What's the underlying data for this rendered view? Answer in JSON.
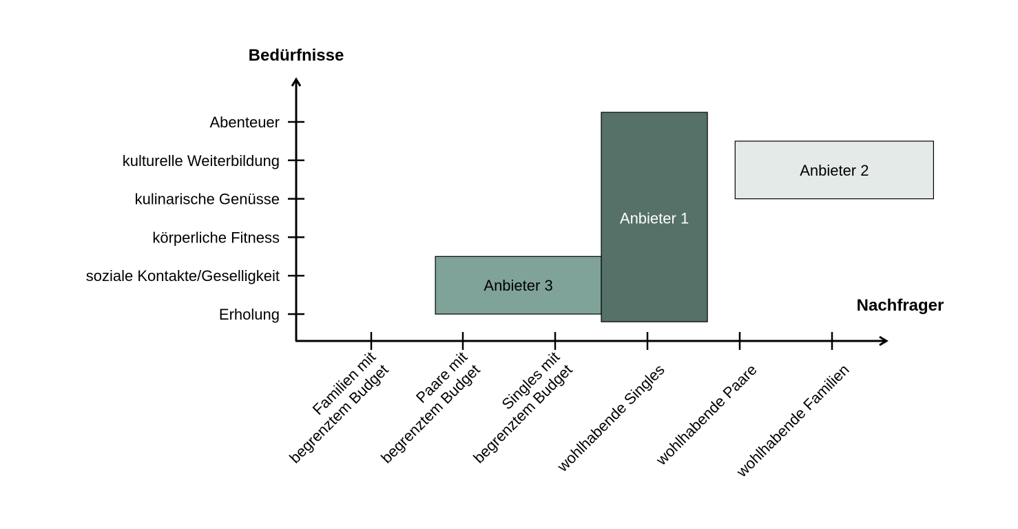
{
  "diagram": {
    "y_axis_title": "Bedürfnisse",
    "x_axis_title": "Nachfrager",
    "y_categories": [
      "Erholung",
      "soziale Kontakte/Geselligkeit",
      "körperliche Fitness",
      "kulinarische Genüsse",
      "kulturelle Weiterbildung",
      "Abenteuer"
    ],
    "x_categories": [
      [
        "Familien mit",
        "begrenztem Budget"
      ],
      [
        "Paare mit",
        "begrenztem Budget"
      ],
      [
        "Singles mit",
        "begrenztem Budget"
      ],
      [
        "wohlhabende Singles"
      ],
      [
        "wohlhabende Paare"
      ],
      [
        "wohlhabende Familien"
      ]
    ],
    "providers": [
      {
        "label": [
          "Anbieter 3"
        ],
        "color": "#7fa399",
        "text_color": "#000000",
        "x_from": 0.7,
        "x_to": 2.5,
        "y_from": 0.0,
        "y_to": 1.5
      },
      {
        "label": [
          "Anbieter 1"
        ],
        "color": "#557168",
        "text_color": "#ffffff",
        "x_from": 2.5,
        "x_to": 3.65,
        "y_from": -0.2,
        "y_to": 5.25
      },
      {
        "label": [
          "Anbieter 2"
        ],
        "color": "#e4eae7",
        "text_color": "#000000",
        "x_from": 3.95,
        "x_to": 6.1,
        "y_from": 3.0,
        "y_to": 4.5
      }
    ]
  }
}
